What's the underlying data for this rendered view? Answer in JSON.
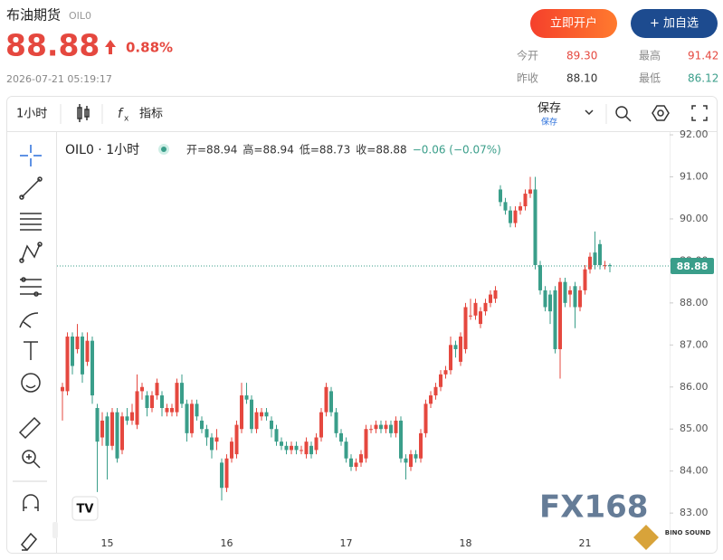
{
  "header": {
    "name": "布油期货",
    "code": "OIL0",
    "price": "88.88",
    "change": "0.88%",
    "time": "2026-07-21 05:19:17",
    "buttons": [
      "立即开户",
      "+ 加自选"
    ],
    "stats": [
      [
        "今开",
        "89.30"
      ],
      [
        "最高",
        "91.42"
      ],
      [
        "昨收",
        "88.10"
      ],
      [
        "最低",
        "86.12"
      ]
    ]
  },
  "toolbar": {
    "interval": "1小时",
    "indicators": "指标",
    "save": "保存",
    "save_sub": "保存"
  },
  "watermark": "FX168",
  "corner_logo": "BINO SOUND",
  "chart_data": {
    "type": "candlestick",
    "legend": {
      "symbol": "OIL0 · 1小时",
      "ohlc": [
        "开=88.94",
        "高=88.94",
        "低=88.73",
        "收=88.88"
      ],
      "change": "−0.06 (−0.07%)"
    },
    "up_color": "#e5483f",
    "down_color": "#3a9e8a",
    "last_price": 88.88,
    "last_price_color": "#3a9e8a",
    "ylim": [
      82.68,
      92.13
    ],
    "yticks": [
      {
        "value": 83,
        "label": "83.00"
      },
      {
        "value": 84,
        "label": "84.00"
      },
      {
        "value": 85,
        "label": "85.00"
      },
      {
        "value": 86,
        "label": "86.00"
      },
      {
        "value": 87,
        "label": "87.00"
      },
      {
        "value": 88,
        "label": "88.00"
      },
      {
        "value": 89,
        "label": "89.00"
      },
      {
        "value": 90,
        "label": "90.00"
      },
      {
        "value": 91,
        "label": "91.00"
      },
      {
        "value": 92,
        "label": "92.00"
      }
    ],
    "categories": [
      null,
      null,
      null,
      null,
      null,
      null,
      null,
      null,
      null,
      "15",
      null,
      null,
      null,
      null,
      null,
      null,
      null,
      null,
      null,
      null,
      null,
      null,
      null,
      null,
      null,
      null,
      null,
      null,
      null,
      null,
      null,
      null,
      null,
      "16",
      null,
      null,
      null,
      null,
      null,
      null,
      null,
      null,
      null,
      null,
      null,
      null,
      null,
      null,
      null,
      null,
      null,
      null,
      null,
      null,
      null,
      null,
      null,
      "17",
      null,
      null,
      null,
      null,
      null,
      null,
      null,
      null,
      null,
      null,
      null,
      null,
      null,
      null,
      null,
      null,
      null,
      null,
      null,
      null,
      null,
      null,
      null,
      "18",
      null,
      null,
      null,
      null,
      null,
      null,
      null,
      null,
      null,
      null,
      null,
      null,
      null,
      null,
      null,
      null,
      null,
      null,
      null,
      null,
      null,
      null,
      null,
      "21",
      null,
      null,
      null,
      null,
      null
    ],
    "open": [
      85.9,
      85.9,
      87.2,
      86.9,
      87.2,
      86.6,
      87.1,
      85.5,
      84.8,
      85.3,
      84.6,
      85.4,
      84.5,
      85.3,
      85.2,
      85.1,
      85.9,
      85.8,
      85.5,
      85.8,
      85.8,
      85.4,
      85.4,
      85.4,
      86.1,
      85.6,
      84.9,
      85.6,
      85.2,
      85.0,
      84.8,
      84.7,
      84.2,
      83.6,
      84.3,
      84.4,
      85.0,
      85.8,
      85.7,
      85.0,
      85.3,
      85.4,
      85.2,
      85.0,
      84.7,
      84.6,
      84.5,
      84.6,
      84.5,
      84.4,
      84.6,
      84.5,
      84.8,
      85.4,
      85.9,
      85.4,
      84.9,
      84.7,
      84.3,
      84.1,
      84.2,
      84.3,
      85.0,
      85.0,
      85.1,
      85.0,
      85.1,
      84.9,
      85.2,
      84.3,
      84.1,
      84.4,
      84.3,
      84.9,
      85.6,
      85.8,
      86.0,
      86.3,
      86.4,
      87.0,
      86.6,
      86.9,
      87.7,
      87.7,
      87.5,
      87.8,
      88.0,
      88.1,
      90.7,
      90.4,
      90.2,
      89.9,
      90.2,
      90.3,
      90.6,
      90.7,
      88.9,
      88.3,
      88.2,
      88.3,
      86.9,
      88.5,
      88.2,
      88.4,
      87.9,
      88.3,
      88.8,
      89.2,
      89.4,
      88.9,
      88.9
    ],
    "high": [
      86.1,
      87.3,
      87.3,
      87.5,
      87.3,
      87.3,
      87.2,
      85.6,
      85.4,
      85.4,
      85.5,
      85.5,
      85.4,
      85.5,
      85.6,
      86.3,
      86.1,
      85.9,
      85.9,
      86.2,
      85.9,
      85.6,
      85.6,
      86.2,
      86.3,
      85.7,
      85.7,
      85.7,
      85.3,
      85.1,
      84.9,
      85.0,
      84.3,
      84.4,
      84.8,
      85.2,
      86.1,
      86.1,
      85.8,
      85.5,
      85.5,
      85.5,
      85.3,
      85.1,
      84.8,
      84.7,
      84.7,
      84.7,
      84.6,
      84.8,
      84.7,
      84.9,
      85.5,
      86.1,
      86.0,
      85.5,
      85.0,
      84.8,
      84.4,
      84.3,
      84.5,
      85.1,
      85.1,
      85.2,
      85.2,
      85.2,
      85.2,
      85.3,
      85.3,
      84.4,
      84.5,
      84.5,
      85.0,
      85.7,
      85.9,
      86.1,
      86.4,
      86.5,
      87.2,
      87.1,
      87.3,
      88.0,
      88.1,
      88.1,
      87.9,
      88.1,
      88.3,
      88.4,
      90.8,
      90.5,
      90.3,
      90.3,
      90.4,
      90.7,
      91.0,
      91.0,
      89.0,
      88.4,
      88.3,
      88.4,
      88.6,
      88.6,
      88.4,
      88.5,
      88.4,
      88.9,
      89.2,
      89.7,
      89.5,
      89.0,
      88.94
    ],
    "low": [
      85.2,
      85.8,
      86.3,
      86.8,
      86.1,
      86.5,
      85.6,
      83.5,
      84.6,
      83.8,
      84.5,
      84.2,
      84.4,
      85.1,
      85.1,
      85.0,
      85.7,
      85.3,
      85.4,
      85.7,
      85.3,
      85.3,
      85.3,
      85.3,
      85.5,
      84.7,
      84.8,
      85.2,
      84.9,
      84.6,
      84.3,
      84.5,
      83.3,
      83.5,
      84.2,
      84.3,
      84.9,
      85.6,
      84.9,
      84.9,
      85.2,
      85.2,
      84.8,
      84.6,
      84.5,
      84.4,
      84.4,
      84.4,
      84.4,
      84.3,
      84.3,
      84.4,
      84.7,
      85.3,
      85.3,
      84.8,
      84.6,
      84.2,
      84.0,
      84.0,
      84.1,
      84.2,
      84.9,
      84.9,
      84.9,
      84.9,
      84.8,
      84.8,
      84.2,
      83.8,
      84.0,
      84.2,
      84.2,
      84.8,
      85.5,
      85.7,
      85.9,
      86.2,
      86.3,
      86.7,
      86.5,
      86.8,
      87.6,
      87.6,
      87.4,
      87.7,
      87.9,
      88.0,
      90.3,
      90.1,
      89.8,
      89.8,
      90.1,
      90.2,
      90.5,
      88.8,
      88.2,
      87.8,
      87.5,
      86.8,
      86.2,
      87.9,
      87.9,
      87.4,
      87.8,
      88.2,
      88.7,
      88.8,
      88.8,
      88.8,
      88.73
    ],
    "close": [
      86.0,
      87.2,
      86.5,
      87.2,
      86.3,
      87.1,
      85.8,
      84.7,
      85.2,
      84.6,
      85.4,
      84.3,
      85.3,
      85.2,
      85.4,
      85.9,
      86.0,
      85.5,
      85.8,
      86.1,
      85.5,
      85.5,
      85.5,
      86.1,
      85.6,
      84.9,
      85.6,
      85.3,
      85.0,
      84.8,
      84.5,
      84.8,
      83.6,
      84.3,
      84.7,
      85.1,
      85.8,
      85.7,
      85.0,
      85.4,
      85.4,
      85.3,
      85.0,
      84.7,
      84.6,
      84.5,
      84.6,
      84.5,
      84.5,
      84.7,
      84.4,
      84.8,
      85.4,
      86.0,
      85.4,
      84.9,
      84.7,
      84.3,
      84.1,
      84.2,
      84.4,
      85.0,
      85.0,
      85.1,
      85.0,
      85.1,
      84.9,
      85.2,
      84.3,
      84.2,
      84.4,
      84.3,
      84.9,
      85.6,
      85.8,
      86.0,
      86.3,
      86.4,
      87.0,
      86.9,
      87.2,
      87.9,
      87.7,
      88.0,
      87.8,
      88.0,
      88.2,
      88.3,
      90.4,
      90.2,
      89.9,
      90.2,
      90.3,
      90.6,
      90.7,
      88.9,
      88.3,
      87.9,
      87.8,
      86.9,
      88.5,
      88.0,
      88.3,
      87.9,
      88.3,
      88.8,
      89.1,
      88.9,
      88.9,
      88.9,
      88.88
    ]
  }
}
